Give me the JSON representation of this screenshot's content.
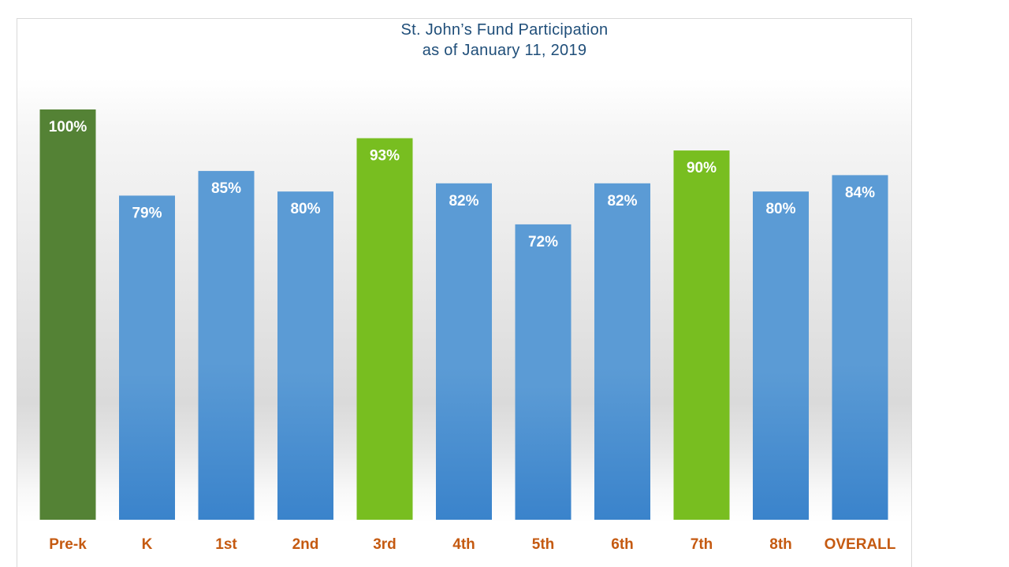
{
  "chart_data": {
    "type": "bar",
    "title": "St. John’s Fund Participation",
    "subtitle": "as of January 11, 2019",
    "categories": [
      "Pre-k",
      "K",
      "1st",
      "2nd",
      "3rd",
      "4th",
      "5th",
      "6th",
      "7th",
      "8th",
      "OVERALL"
    ],
    "values": [
      100,
      79,
      85,
      80,
      93,
      82,
      72,
      82,
      90,
      80,
      84
    ],
    "value_labels": [
      "100%",
      "79%",
      "85%",
      "80%",
      "93%",
      "82%",
      "72%",
      "82%",
      "90%",
      "80%",
      "84%"
    ],
    "bar_colors": [
      "#548235",
      "#5b9bd5",
      "#5b9bd5",
      "#5b9bd5",
      "#78be20",
      "#5b9bd5",
      "#5b9bd5",
      "#5b9bd5",
      "#78be20",
      "#5b9bd5",
      "#5b9bd5"
    ],
    "category_label_color": "#c55a11",
    "value_label_color": "#ffffff",
    "ylim": [
      0,
      100
    ],
    "xlabel": "",
    "ylabel": "",
    "grid": false,
    "legend": "none"
  }
}
